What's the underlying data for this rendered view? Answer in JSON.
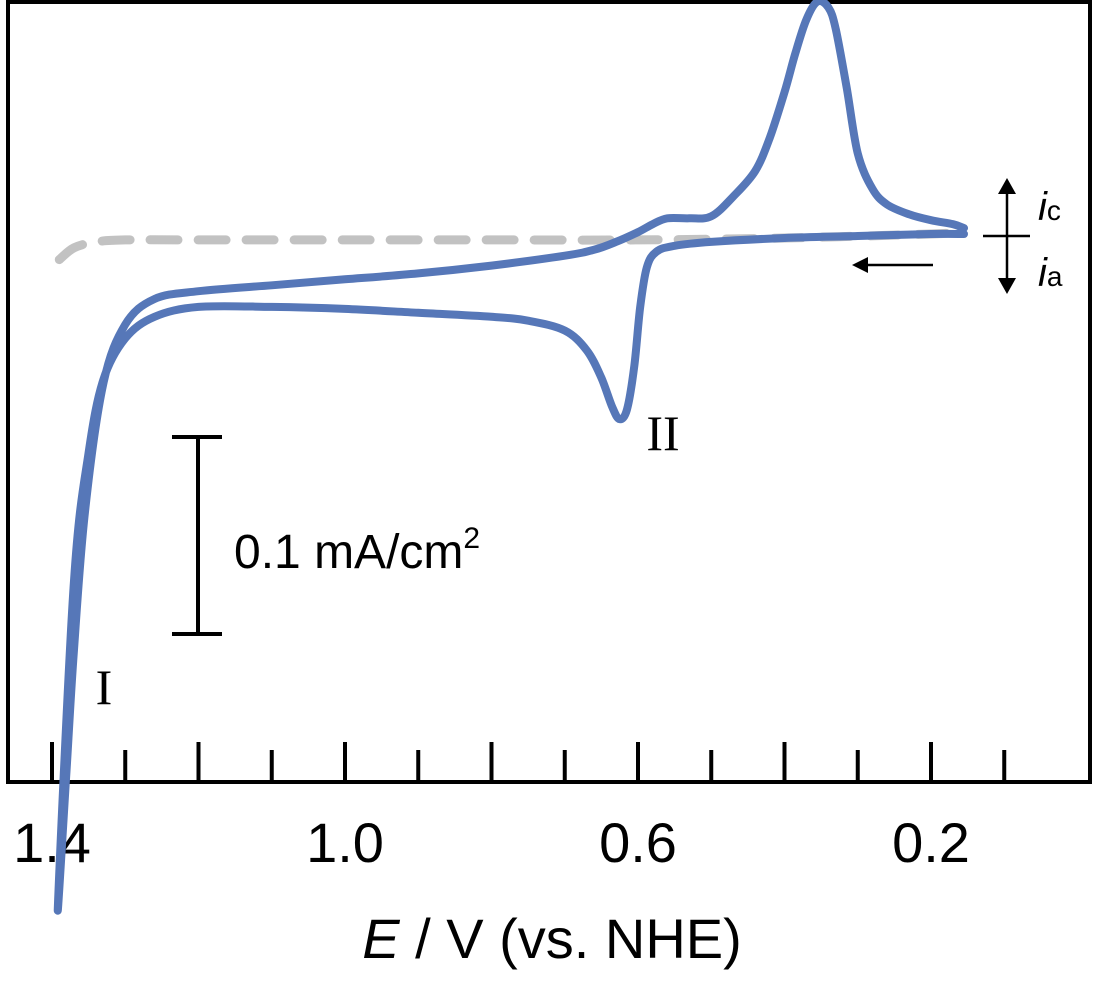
{
  "chart_data": {
    "type": "line",
    "title": "",
    "xlabel": {
      "italic": "E",
      "rest": " / V (vs. NHE)"
    },
    "ylabel": "",
    "x_reversed": true,
    "xlim": [
      1.42,
      0.04
    ],
    "x_ticks": {
      "major": [
        1.4,
        1.2,
        1.0,
        0.8,
        0.6,
        0.4,
        0.2
      ],
      "minor": [
        1.3,
        1.1,
        0.9,
        0.7,
        0.5,
        0.3,
        0.1
      ],
      "labels": [
        {
          "x": 1.4,
          "text": "1.4"
        },
        {
          "x": 1.0,
          "text": "1.0"
        },
        {
          "x": 0.6,
          "text": "0.6"
        },
        {
          "x": 0.2,
          "text": "0.2"
        }
      ]
    },
    "y_units": "mA/cm2",
    "y_range": [
      -0.34,
      0.122
    ],
    "grid": false,
    "colors": {
      "cv": "#5677b8",
      "background_scan": "#c2c2c2",
      "axis": "#000000"
    },
    "series": [
      {
        "key": "cv",
        "style": "solid",
        "points": [
          [
            0.155,
            0.004
          ],
          [
            0.17,
            0.006
          ],
          [
            0.2,
            0.008
          ],
          [
            0.23,
            0.011
          ],
          [
            0.26,
            0.016
          ],
          [
            0.28,
            0.024
          ],
          [
            0.3,
            0.042
          ],
          [
            0.315,
            0.075
          ],
          [
            0.33,
            0.105
          ],
          [
            0.34,
            0.116
          ],
          [
            0.355,
            0.119
          ],
          [
            0.37,
            0.11
          ],
          [
            0.385,
            0.093
          ],
          [
            0.4,
            0.073
          ],
          [
            0.42,
            0.05
          ],
          [
            0.44,
            0.033
          ],
          [
            0.47,
            0.02
          ],
          [
            0.5,
            0.01
          ],
          [
            0.53,
            0.009
          ],
          [
            0.56,
            0.009
          ],
          [
            0.58,
            0.006
          ],
          [
            0.6,
            0.002
          ],
          [
            0.63,
            -0.003
          ],
          [
            0.66,
            -0.007
          ],
          [
            0.7,
            -0.01
          ],
          [
            0.8,
            -0.015
          ],
          [
            0.9,
            -0.019
          ],
          [
            1.0,
            -0.022
          ],
          [
            1.1,
            -0.025
          ],
          [
            1.2,
            -0.028
          ],
          [
            1.26,
            -0.032
          ],
          [
            1.3,
            -0.045
          ],
          [
            1.33,
            -0.075
          ],
          [
            1.355,
            -0.14
          ],
          [
            1.37,
            -0.21
          ],
          [
            1.38,
            -0.27
          ],
          [
            1.392,
            -0.34
          ],
          [
            1.37,
            -0.175
          ],
          [
            1.35,
            -0.11
          ],
          [
            1.33,
            -0.073
          ],
          [
            1.3,
            -0.052
          ],
          [
            1.26,
            -0.041
          ],
          [
            1.2,
            -0.036
          ],
          [
            1.1,
            -0.036
          ],
          [
            1.0,
            -0.037
          ],
          [
            0.9,
            -0.039
          ],
          [
            0.8,
            -0.041
          ],
          [
            0.75,
            -0.043
          ],
          [
            0.7,
            -0.048
          ],
          [
            0.67,
            -0.058
          ],
          [
            0.65,
            -0.072
          ],
          [
            0.635,
            -0.087
          ],
          [
            0.625,
            -0.093
          ],
          [
            0.615,
            -0.088
          ],
          [
            0.605,
            -0.066
          ],
          [
            0.597,
            -0.036
          ],
          [
            0.588,
            -0.016
          ],
          [
            0.575,
            -0.008
          ],
          [
            0.55,
            -0.005
          ],
          [
            0.5,
            -0.003
          ],
          [
            0.4,
            -0.001
          ],
          [
            0.3,
            0.0
          ],
          [
            0.2,
            0.001
          ],
          [
            0.155,
            0.001
          ]
        ]
      },
      {
        "key": "background_scan",
        "style": "dashed",
        "points": [
          [
            1.39,
            -0.012
          ],
          [
            1.37,
            -0.006
          ],
          [
            1.34,
            -0.003
          ],
          [
            1.3,
            -0.002
          ],
          [
            1.2,
            -0.002
          ],
          [
            1.0,
            -0.002
          ],
          [
            0.8,
            -0.002
          ],
          [
            0.6,
            -0.002
          ],
          [
            0.4,
            -0.001
          ],
          [
            0.2,
            0.001
          ],
          [
            0.155,
            0.002
          ]
        ]
      }
    ],
    "annotations": {
      "peak_I": "I",
      "peak_II": "II",
      "scale_bar_label": "0.1 mA/cm",
      "scale_bar_superscript": "2",
      "scale_bar_value": 0.1,
      "current_cathodic_symbol": "i",
      "current_cathodic_subscript": "c",
      "current_anodic_symbol": "i",
      "current_anodic_subscript": "a"
    }
  }
}
